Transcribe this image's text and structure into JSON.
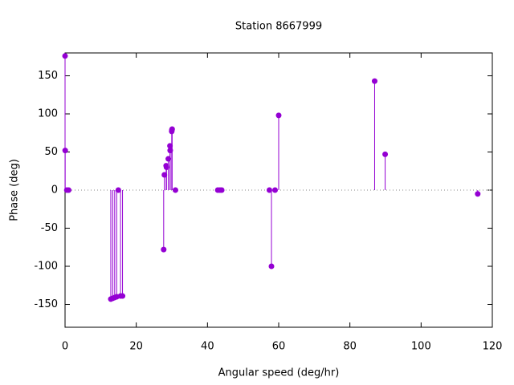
{
  "chart_data": {
    "type": "stem",
    "title": "Station 8667999",
    "x_label": "Angular speed (deg/hr)",
    "y_label": "Phase (deg)",
    "color": "#9400d3",
    "zero_line": true,
    "x": [
      0,
      0.04,
      0.5,
      1.0,
      12.85,
      13.4,
      13.94,
      14.5,
      14.96,
      15.58,
      16.14,
      27.7,
      27.9,
      28.4,
      28.5,
      29.0,
      29.46,
      29.53,
      29.96,
      30.0,
      30.08,
      31.0,
      42.9,
      43.5,
      44.0,
      57.4,
      57.97,
      58.98,
      60.0,
      86.95,
      89.9,
      115.9
    ],
    "y": [
      176,
      52,
      0,
      0,
      -143,
      -142,
      -141,
      -140,
      0,
      -139,
      -139,
      -78,
      20,
      32,
      30,
      41,
      58,
      52,
      77,
      79,
      80,
      0,
      0,
      0,
      0,
      0,
      -100,
      0,
      98,
      143,
      47,
      -5
    ],
    "xlim": [
      0,
      120
    ],
    "xticks": [
      0,
      20,
      40,
      60,
      80,
      100,
      120
    ],
    "ylim": [
      -180,
      180
    ],
    "yticks": [
      -150,
      -100,
      -50,
      0,
      50,
      100,
      150
    ]
  }
}
